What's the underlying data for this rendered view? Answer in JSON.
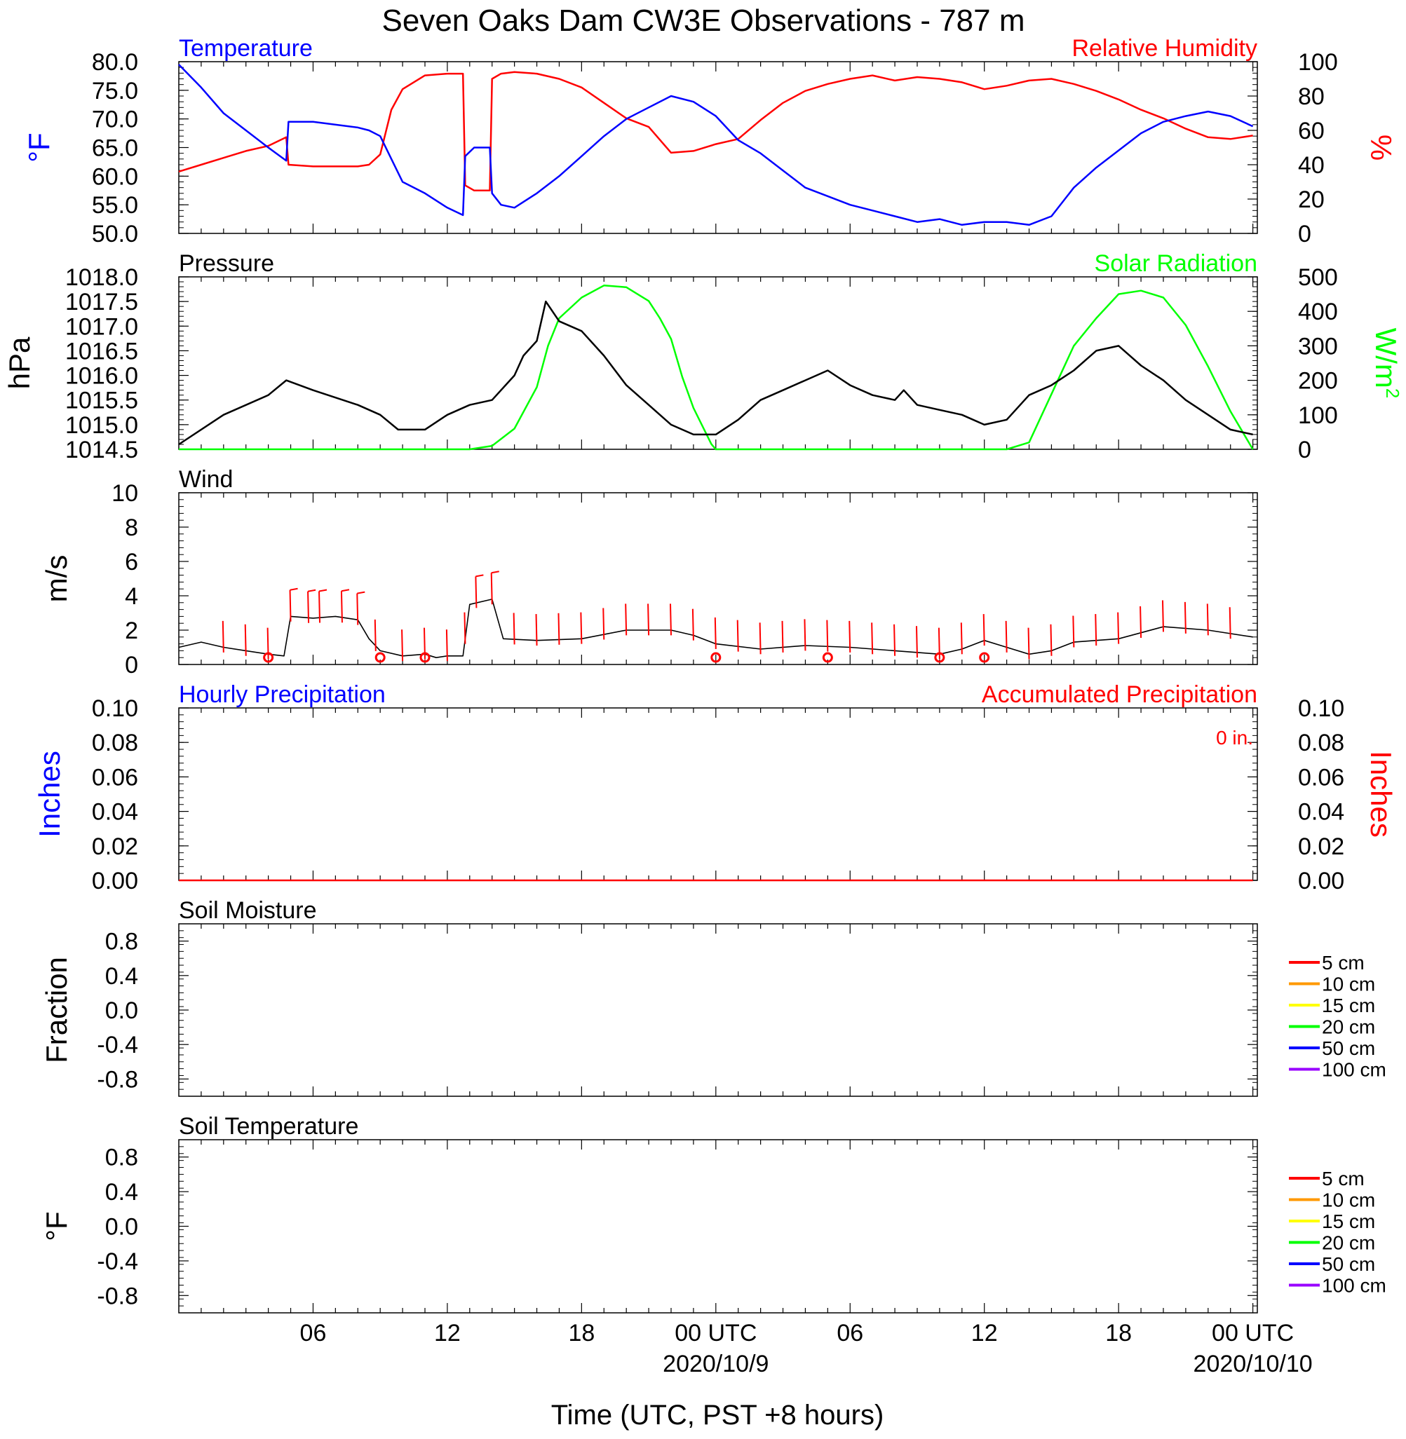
{
  "title": "Seven Oaks Dam CW3E Observations - 787 m",
  "xlabel": "Time (UTC, PST +8 hours)",
  "x_ticks": [
    "06",
    "12",
    "18",
    "00 UTC",
    "06",
    "12",
    "18",
    "00 UTC"
  ],
  "x_dates": [
    "2020/10/9",
    "2020/10/10"
  ],
  "colors": {
    "temperature": "#0000ff",
    "humidity": "#ff0000",
    "pressure": "#000000",
    "solar": "#00ff00",
    "wind": "#000000",
    "barb": "#ff0000",
    "precip_hourly": "#0000ff",
    "precip_accum": "#ff0000"
  },
  "chart_data": [
    {
      "type": "line",
      "panel": "temperature-humidity",
      "left_title": "Temperature",
      "right_title": "Relative Humidity",
      "ylabel_left": "°F",
      "ylabel_right": "%",
      "ylim_left": [
        50,
        80
      ],
      "ylim_right": [
        0,
        100
      ],
      "yticks_left": [
        "80.0",
        "75.0",
        "70.0",
        "65.0",
        "60.0",
        "55.0",
        "50.0"
      ],
      "yticks_right": [
        "100",
        "80",
        "60",
        "40",
        "20",
        "0"
      ],
      "x_hours": [
        0,
        1,
        2,
        3,
        4,
        4.8,
        4.9,
        6,
        8,
        8.5,
        9,
        9.5,
        10,
        11,
        12,
        12.7,
        12.8,
        13.2,
        13.9,
        14,
        14.4,
        15,
        16,
        17,
        18,
        19,
        20,
        21,
        22,
        23,
        24,
        25,
        26,
        27,
        28,
        29,
        30,
        31,
        32,
        33,
        34,
        35,
        36,
        37,
        38,
        39,
        40,
        41,
        42,
        43,
        44,
        45,
        46,
        47,
        48
      ],
      "series": [
        {
          "name": "Temperature",
          "axis": "left",
          "values": [
            79.5,
            75.5,
            71,
            68,
            65,
            62.7,
            69.5,
            69.5,
            68.5,
            68,
            67,
            63,
            59,
            57,
            54.5,
            53.2,
            63.5,
            65,
            65,
            57,
            55,
            54.5,
            57,
            60,
            63.5,
            67,
            70,
            72,
            74,
            73,
            70.5,
            66.3,
            64,
            61,
            58,
            56.5,
            55,
            54,
            53,
            52,
            52.5,
            51.5,
            52,
            52,
            51.5,
            53,
            58,
            61.5,
            64.5,
            67.5,
            69.5,
            70.5,
            71.3,
            70.5,
            68.7
          ]
        },
        {
          "name": "Relative Humidity",
          "axis": "right",
          "values": [
            36,
            40,
            44,
            48,
            51,
            56,
            40,
            39,
            39,
            40,
            46,
            72,
            84,
            92,
            93,
            93,
            28,
            25,
            25,
            90,
            93,
            94,
            93,
            90,
            85,
            76,
            67,
            62,
            47,
            48,
            52,
            55,
            66,
            76,
            83,
            87,
            90,
            92,
            89,
            91,
            90,
            88,
            84,
            86,
            89,
            90,
            87,
            83,
            78,
            72,
            67,
            61,
            56,
            55,
            57
          ]
        }
      ]
    },
    {
      "type": "line",
      "panel": "pressure-solar",
      "left_title": "Pressure",
      "right_title": "Solar Radiation",
      "ylabel_left": "hPa",
      "ylabel_right": "W/m",
      "ylabel_right_sup": "2",
      "ylim_left": [
        1014.5,
        1018.0
      ],
      "ylim_right": [
        0,
        500
      ],
      "yticks_left": [
        "1018.0",
        "1017.5",
        "1017.0",
        "1016.5",
        "1016.0",
        "1015.5",
        "1015.0",
        "1014.5"
      ],
      "yticks_right": [
        "500",
        "400",
        "300",
        "200",
        "100",
        "0"
      ],
      "series": [
        {
          "name": "Pressure",
          "axis": "left",
          "x_hours": [
            0,
            2,
            4,
            4.8,
            6,
            8,
            9,
            9.8,
            11,
            12,
            13,
            14,
            15,
            15.4,
            16,
            16.4,
            17,
            18,
            19,
            20,
            21,
            22,
            23,
            24,
            25,
            26,
            27,
            28,
            29,
            30,
            31,
            32,
            32.4,
            33,
            34,
            35,
            36,
            37,
            38,
            39,
            40,
            41,
            42,
            43,
            44,
            45,
            46,
            47,
            48
          ],
          "values": [
            1014.6,
            1015.2,
            1015.6,
            1015.9,
            1015.7,
            1015.4,
            1015.2,
            1014.9,
            1014.9,
            1015.2,
            1015.4,
            1015.5,
            1016.0,
            1016.4,
            1016.7,
            1017.5,
            1017.1,
            1016.9,
            1016.4,
            1015.8,
            1015.4,
            1015.0,
            1014.8,
            1014.8,
            1015.1,
            1015.5,
            1015.7,
            1015.9,
            1016.1,
            1015.8,
            1015.6,
            1015.5,
            1015.7,
            1015.4,
            1015.3,
            1015.2,
            1015.0,
            1015.1,
            1015.6,
            1015.8,
            1016.1,
            1016.5,
            1016.6,
            1016.2,
            1015.9,
            1015.5,
            1015.2,
            1014.9,
            1014.8
          ]
        },
        {
          "name": "Solar Radiation",
          "axis": "right",
          "x_hours": [
            0,
            13,
            14,
            15,
            16,
            16.5,
            17,
            18,
            19,
            20,
            21,
            21.5,
            22,
            22.5,
            23,
            23.8,
            24,
            37,
            38,
            39,
            40,
            41,
            42,
            43,
            44,
            45,
            46,
            47,
            48
          ],
          "values": [
            0,
            0,
            10,
            60,
            180,
            300,
            380,
            440,
            475,
            470,
            430,
            380,
            320,
            210,
            120,
            15,
            0,
            0,
            20,
            160,
            300,
            380,
            450,
            460,
            440,
            360,
            240,
            110,
            0
          ]
        }
      ]
    },
    {
      "type": "line",
      "panel": "wind",
      "left_title": "Wind",
      "ylabel_left": "m/s",
      "ylim_left": [
        0,
        10
      ],
      "yticks_left": [
        "10",
        "8",
        "6",
        "4",
        "2",
        "0"
      ],
      "x_hours": [
        0,
        1,
        2,
        3,
        4,
        4.7,
        5,
        6,
        7,
        8,
        8.5,
        9,
        10,
        11,
        11.5,
        12,
        12.7,
        13,
        14,
        14.5,
        16,
        18,
        20,
        22,
        23,
        24,
        26,
        28,
        30,
        32,
        34,
        35,
        36,
        37,
        38,
        39,
        40,
        42,
        44,
        46,
        48
      ],
      "series": [
        {
          "name": "Wind Speed",
          "axis": "left",
          "values": [
            1.0,
            1.3,
            1.0,
            0.8,
            0.6,
            0.5,
            2.8,
            2.7,
            2.8,
            2.6,
            1.5,
            0.8,
            0.5,
            0.6,
            0.4,
            0.5,
            0.5,
            3.5,
            3.8,
            1.5,
            1.4,
            1.5,
            2.0,
            2.0,
            1.7,
            1.2,
            0.9,
            1.1,
            1.0,
            0.8,
            0.6,
            0.9,
            1.4,
            1.0,
            0.6,
            0.8,
            1.3,
            1.5,
            2.2,
            2.0,
            1.6
          ]
        }
      ],
      "barb_hours": [
        2,
        3,
        4,
        5,
        5.8,
        6.3,
        7.3,
        8,
        8.8,
        10,
        11,
        12,
        12.8,
        13.3,
        14,
        15,
        16,
        17,
        18,
        19,
        20,
        21,
        22,
        23,
        24,
        25,
        26,
        27,
        28,
        29,
        30,
        31,
        32,
        33,
        34,
        35,
        36,
        37,
        38,
        39,
        40,
        41,
        42,
        43,
        44,
        45,
        46,
        47
      ],
      "calm_hours": [
        4,
        9,
        11,
        24,
        29,
        34,
        36
      ]
    },
    {
      "type": "line",
      "panel": "precipitation",
      "left_title": "Hourly Precipitation",
      "right_title": "Accumulated Precipitation",
      "accum_label": "0 in.",
      "ylabel_left": "Inches",
      "ylabel_right": "Inches",
      "ylim_left": [
        0,
        0.1
      ],
      "ylim_right": [
        0,
        0.1
      ],
      "yticks_left": [
        "0.10",
        "0.08",
        "0.06",
        "0.04",
        "0.02",
        "0.00"
      ],
      "yticks_right": [
        "0.10",
        "0.08",
        "0.06",
        "0.04",
        "0.02",
        "0.00"
      ],
      "x_hours": [
        0,
        48
      ],
      "series": [
        {
          "name": "Hourly Precipitation",
          "axis": "left",
          "values": [
            0,
            0
          ]
        },
        {
          "name": "Accumulated Precipitation",
          "axis": "right",
          "values": [
            0,
            0
          ]
        }
      ]
    },
    {
      "type": "line",
      "panel": "soil-moisture",
      "left_title": "Soil Moisture",
      "ylabel_left": "Fraction",
      "ylim_left": [
        -1,
        1
      ],
      "yticks_left": [
        "0.8",
        "0.4",
        "0.0",
        "-0.4",
        "-0.8"
      ],
      "legend": [
        {
          "name": "5 cm",
          "color": "#ff0000"
        },
        {
          "name": "10 cm",
          "color": "#ff9900"
        },
        {
          "name": "15 cm",
          "color": "#ffff00"
        },
        {
          "name": "20 cm",
          "color": "#00ff00"
        },
        {
          "name": "50 cm",
          "color": "#0000ff"
        },
        {
          "name": "100 cm",
          "color": "#9900ff"
        }
      ],
      "series": []
    },
    {
      "type": "line",
      "panel": "soil-temperature",
      "left_title": "Soil Temperature",
      "ylabel_left": "°F",
      "ylim_left": [
        -1,
        1
      ],
      "yticks_left": [
        "0.8",
        "0.4",
        "0.0",
        "-0.4",
        "-0.8"
      ],
      "legend": [
        {
          "name": "5 cm",
          "color": "#ff0000"
        },
        {
          "name": "10 cm",
          "color": "#ff9900"
        },
        {
          "name": "15 cm",
          "color": "#ffff00"
        },
        {
          "name": "20 cm",
          "color": "#00ff00"
        },
        {
          "name": "50 cm",
          "color": "#0000ff"
        },
        {
          "name": "100 cm",
          "color": "#9900ff"
        }
      ],
      "series": []
    }
  ]
}
